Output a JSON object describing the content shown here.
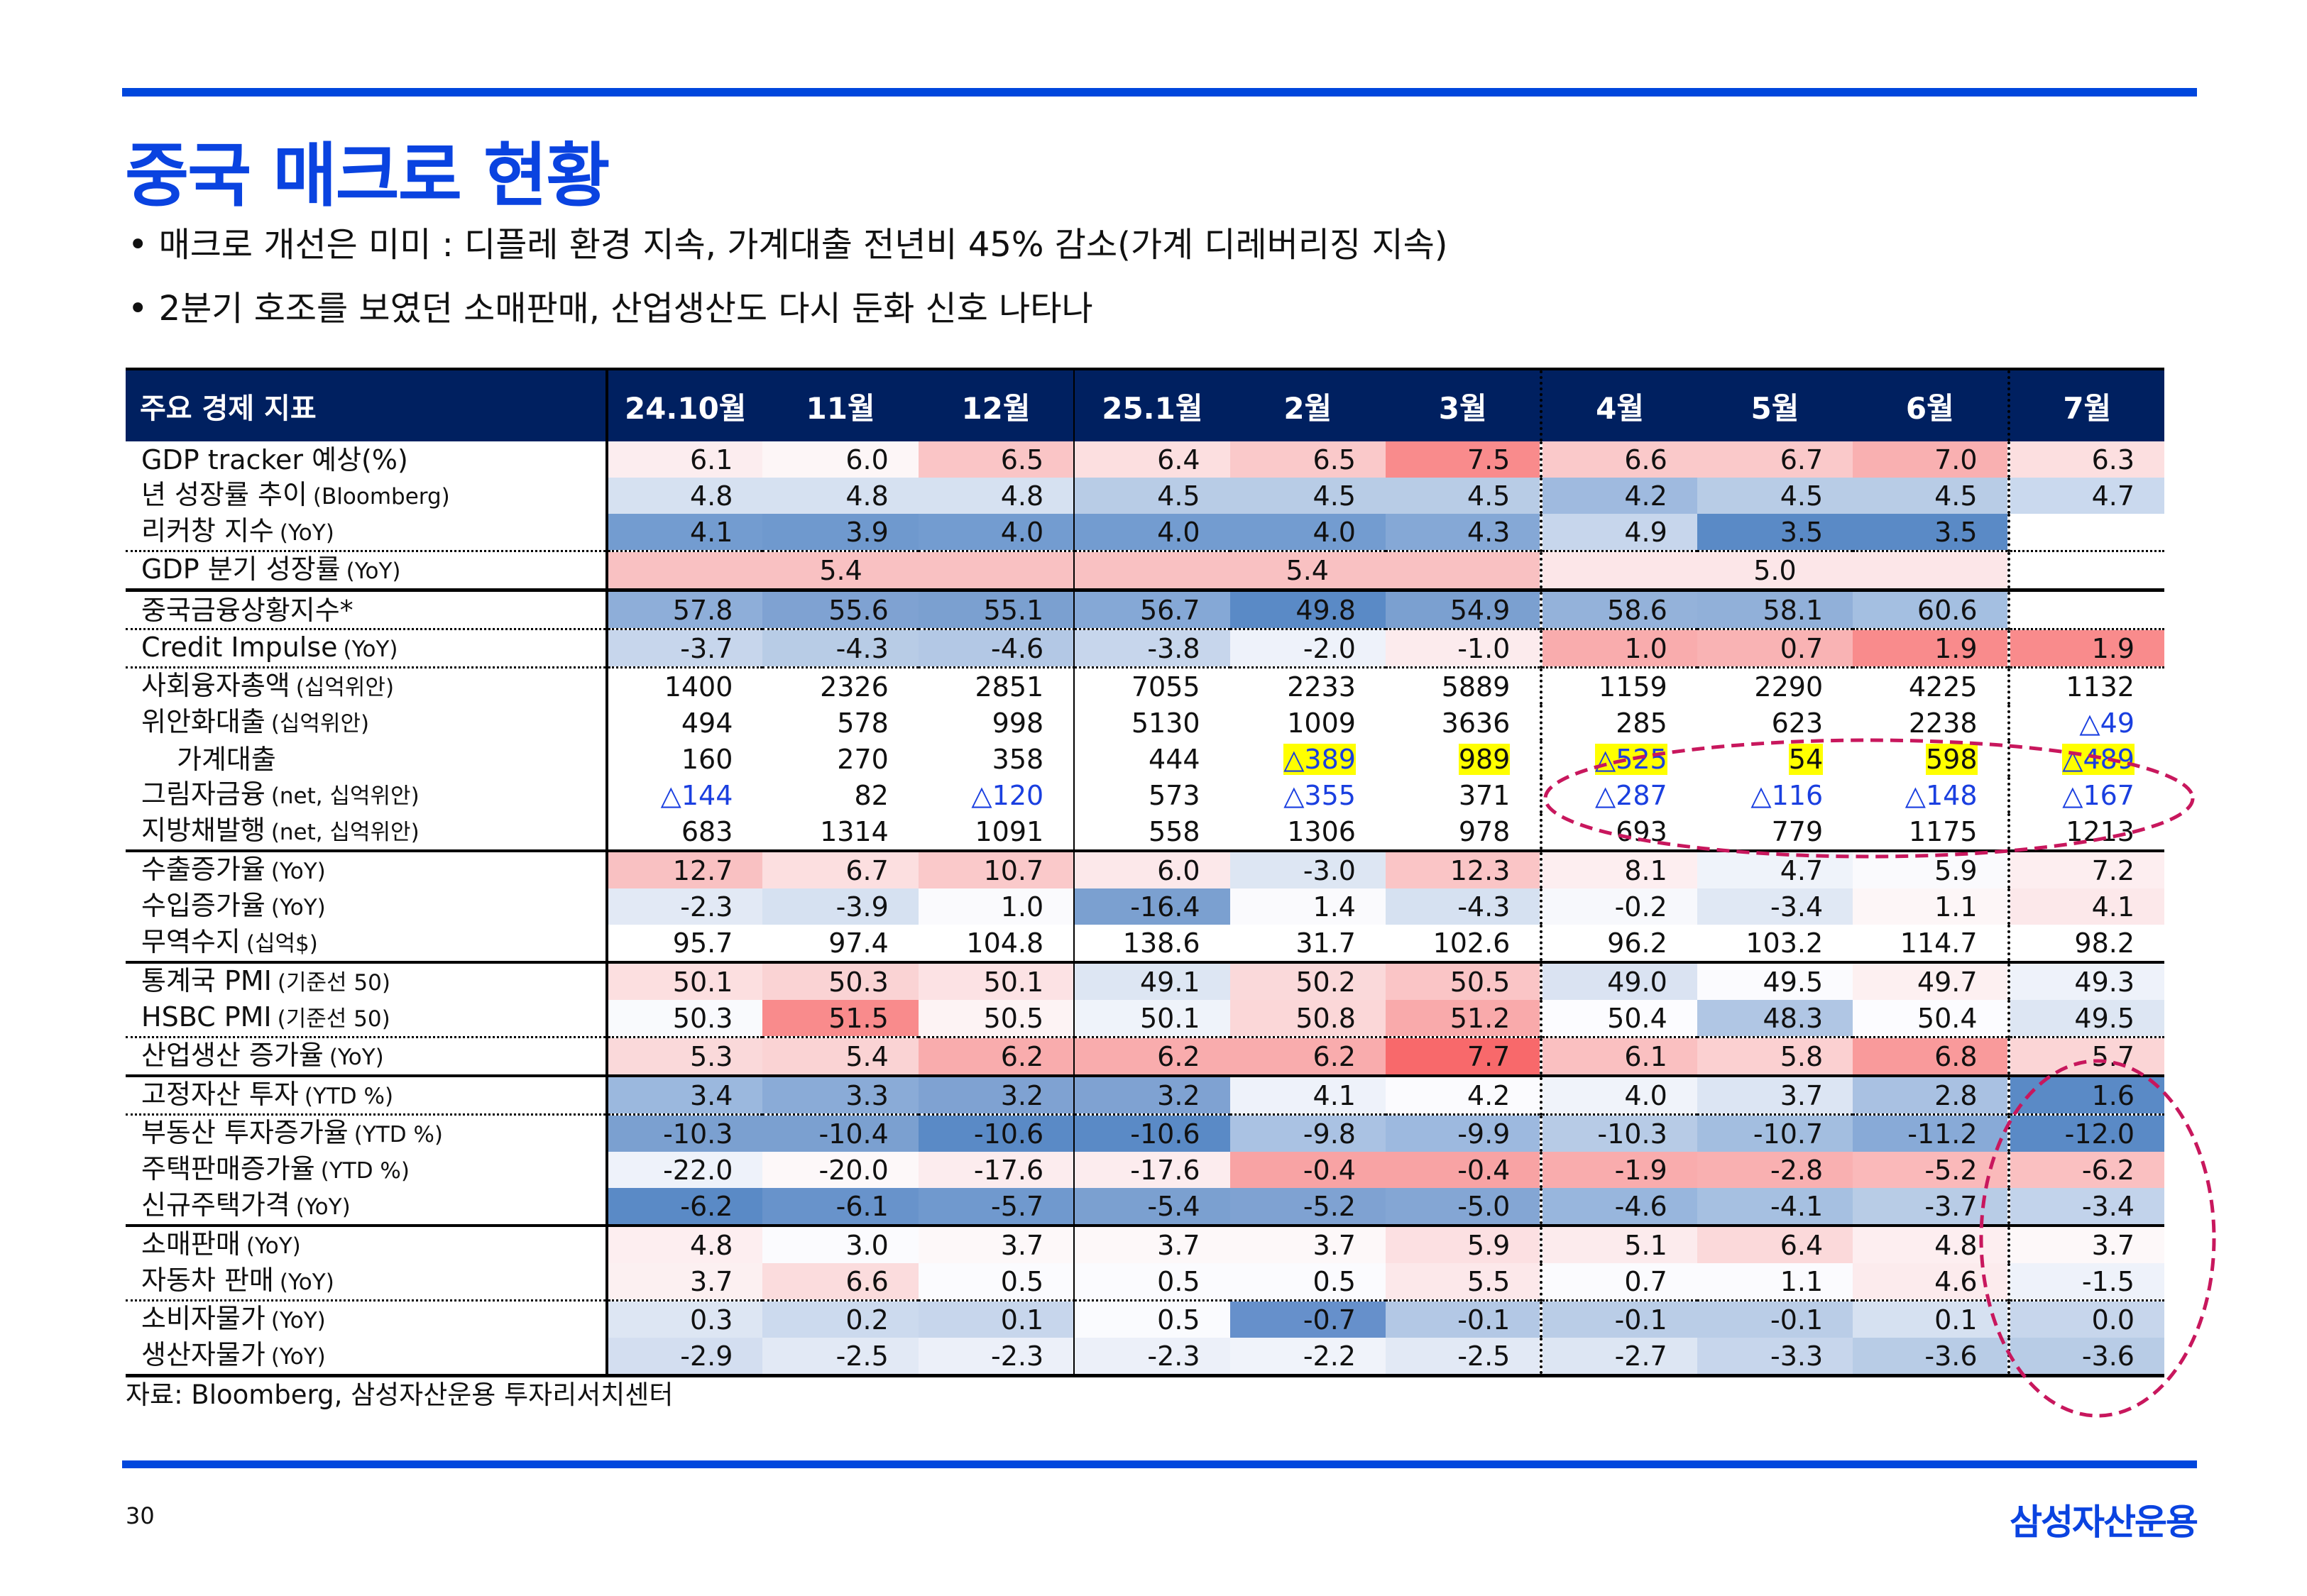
{
  "title": "중국 매크로 현황",
  "bullets": [
    "매크로 개선은 미미 : 디플레 환경 지속, 가계대출 전년비 45% 감소(가계 디레버리징 지속)",
    "2분기 호조를 보였던 소매판매, 산업생산도 다시 둔화 신호 나타나"
  ],
  "table": {
    "header_label": "주요 경제 지표",
    "columns": [
      "24.10월",
      "11월",
      "12월",
      "25.1월",
      "2월",
      "3월",
      "4월",
      "5월",
      "6월",
      "7월"
    ],
    "rows": [
      {
        "label": "GDP tracker 예상(%)",
        "unit": "",
        "values": [
          "6.1",
          "6.0",
          "6.5",
          "6.4",
          "6.5",
          "7.5",
          "6.6",
          "6.7",
          "7.0",
          "6.3"
        ],
        "bg": [
          "#fcedef",
          "#fdf6f7",
          "#fac5c6",
          "#fcdfe0",
          "#fac9ca",
          "#f98b8c",
          "#fac9ca",
          "#fac9ca",
          "#f9b0b1",
          "#fcdfe0"
        ]
      },
      {
        "label": "년 성장률 추이",
        "unit": "(Bloomberg)",
        "values": [
          "4.8",
          "4.8",
          "4.8",
          "4.5",
          "4.5",
          "4.5",
          "4.2",
          "4.5",
          "4.5",
          "4.7"
        ],
        "bg": [
          "#d6e1f1",
          "#d6e1f1",
          "#d6e1f1",
          "#b8cce6",
          "#b8cce6",
          "#b8cce6",
          "#9fbadf",
          "#b8cce6",
          "#b8cce6",
          "#cad9ee"
        ]
      },
      {
        "label": "리커창 지수",
        "unit": "(YoY)",
        "values": [
          "4.1",
          "3.9",
          "4.0",
          "4.0",
          "4.0",
          "4.3",
          "4.9",
          "3.5",
          "3.5",
          ""
        ],
        "bg": [
          "#739cd0",
          "#6f99ce",
          "#739cd0",
          "#739cd0",
          "#739cd0",
          "#85a8d6",
          "#c7d6ec",
          "#5a8ac6",
          "#5a8ac6",
          "#ffffff"
        ]
      },
      {
        "label": "GDP 분기 성장률",
        "unit": "(YoY)",
        "values": [
          "5.4",
          "5.4",
          "5.0",
          ""
        ],
        "bg": [
          "#f9c1c2",
          "#f9c1c2",
          "#fce6e8",
          "#ffffff"
        ]
      },
      {
        "label": "중국금융상황지수*",
        "unit": "",
        "values": [
          "57.8",
          "55.6",
          "55.1",
          "56.7",
          "49.8",
          "54.9",
          "58.6",
          "58.1",
          "60.6",
          ""
        ],
        "bg": [
          "#8eaed9",
          "#7fa2d2",
          "#7ba0d0",
          "#85a8d6",
          "#5a8ac6",
          "#7ba0d0",
          "#94b2da",
          "#91b0d9",
          "#a4bfe1",
          "#ffffff"
        ]
      },
      {
        "label": "Credit Impulse",
        "unit": "(YoY)",
        "values": [
          "-3.7",
          "-4.3",
          "-4.6",
          "-3.8",
          "-2.0",
          "-1.0",
          "1.0",
          "0.7",
          "1.9",
          "1.9"
        ],
        "bg": [
          "#c7d6ec",
          "#b8cce6",
          "#b3c8e5",
          "#c7d6ec",
          "#eef2fa",
          "#fcebed",
          "#f9acad",
          "#f9b3b4",
          "#f98b8c",
          "#f98b8c"
        ]
      },
      {
        "label": "사회융자총액",
        "unit": "(십억위안)",
        "values": [
          "1400",
          "2326",
          "2851",
          "7055",
          "2233",
          "5889",
          "1159",
          "2290",
          "4225",
          "1132"
        ],
        "bg": []
      },
      {
        "label": "위안화대출",
        "unit": "(십억위안)",
        "values": [
          "494",
          "578",
          "998",
          "5130",
          "1009",
          "3636",
          "285",
          "623",
          "2238",
          "△49"
        ],
        "bg": []
      },
      {
        "label": "가계대출",
        "unit": "",
        "indent": true,
        "values": [
          "160",
          "270",
          "358",
          "444",
          "△389",
          "989",
          "△525",
          "54",
          "598",
          "△489"
        ],
        "highlight": [
          4,
          5,
          6,
          7,
          8,
          9
        ],
        "bg": []
      },
      {
        "label": "그림자금융",
        "unit": "(net, 십억위안)",
        "values": [
          "△144",
          "82",
          "△120",
          "573",
          "△355",
          "371",
          "△287",
          "△116",
          "△148",
          "△167"
        ],
        "bg": []
      },
      {
        "label": "지방채발행",
        "unit": "(net, 십억위안)",
        "values": [
          "683",
          "1314",
          "1091",
          "558",
          "1306",
          "978",
          "693",
          "779",
          "1175",
          "1213"
        ],
        "bg": []
      },
      {
        "label": "수출증가율",
        "unit": "(YoY)",
        "values": [
          "12.7",
          "6.7",
          "10.7",
          "6.0",
          "-3.0",
          "12.3",
          "8.1",
          "4.7",
          "5.9",
          "7.2"
        ],
        "bg": [
          "#f9c1c2",
          "#fcdfe0",
          "#fac9ca",
          "#fce8ea",
          "#dde6f3",
          "#fac5c6",
          "#fdeef0",
          "#eff3fa",
          "#fafafd",
          "#fdeef0"
        ]
      },
      {
        "label": "수입증가율",
        "unit": "(YoY)",
        "values": [
          "-2.3",
          "-3.9",
          "1.0",
          "-16.4",
          "1.4",
          "-4.3",
          "-0.2",
          "-3.4",
          "1.1",
          "4.1"
        ],
        "bg": [
          "#e2e9f5",
          "#d6e1f1",
          "#fafafd",
          "#7ba0d0",
          "#fafafd",
          "#d6e1f1",
          "#f7f8fc",
          "#e0e8f4",
          "#fdf6f7",
          "#fce8ea"
        ]
      },
      {
        "label": "무역수지",
        "unit": "(십억$)",
        "values": [
          "95.7",
          "97.4",
          "104.8",
          "138.6",
          "31.7",
          "102.6",
          "96.2",
          "103.2",
          "114.7",
          "98.2"
        ],
        "bg": []
      },
      {
        "label": "통계국 PMI",
        "unit": "(기준선 50)",
        "values": [
          "50.1",
          "50.3",
          "50.1",
          "49.1",
          "50.2",
          "50.5",
          "49.0",
          "49.5",
          "49.7",
          "49.3"
        ],
        "bg": [
          "#fcdfe0",
          "#fad3d4",
          "#fce2e4",
          "#dde6f3",
          "#fad9da",
          "#fac5c6",
          "#dae3f2",
          "#fbfbfe",
          "#fdf0f1",
          "#eef2fa"
        ]
      },
      {
        "label": "HSBC PMI",
        "unit": "(기준선 50)",
        "values": [
          "50.3",
          "51.5",
          "50.5",
          "50.1",
          "50.8",
          "51.2",
          "50.4",
          "48.3",
          "50.4",
          "49.5"
        ],
        "bg": [
          "#f9fafd",
          "#f98b8c",
          "#fdf3f4",
          "#eff3fa",
          "#fbd7d8",
          "#f9aaab",
          "#fcfcff",
          "#b0c6e4",
          "#fcfcff",
          "#dde6f3"
        ]
      },
      {
        "label": "산업생산 증가율",
        "unit": "(YoY)",
        "values": [
          "5.3",
          "5.4",
          "6.2",
          "6.2",
          "6.2",
          "7.7",
          "6.1",
          "5.8",
          "6.8",
          "5.7"
        ],
        "bg": [
          "#fad9da",
          "#fad3d4",
          "#f9acad",
          "#f9acad",
          "#f9acad",
          "#f8696b",
          "#fac0c1",
          "#fbd0d1",
          "#f99a9b",
          "#fbd5d6"
        ]
      },
      {
        "label": "고정자산 투자",
        "unit": "(YTD %)",
        "values": [
          "3.4",
          "3.3",
          "3.2",
          "3.2",
          "4.1",
          "4.2",
          "4.0",
          "3.7",
          "2.8",
          "1.6"
        ],
        "bg": [
          "#9bb8de",
          "#8aabd7",
          "#7fa2d2",
          "#7fa2d2",
          "#eef2fa",
          "#fbfbfe",
          "#f0f3fa",
          "#dce5f3",
          "#a9c1e2",
          "#5a8ac6"
        ]
      },
      {
        "label": "부동산 투자증가율",
        "unit": "(YTD %)",
        "values": [
          "-10.3",
          "-10.4",
          "-10.6",
          "-10.6",
          "-9.8",
          "-9.9",
          "-10.3",
          "-10.7",
          "-11.2",
          "-12.0"
        ],
        "bg": [
          "#7ba0d0",
          "#7ba0d0",
          "#5a8ac6",
          "#5a8ac6",
          "#aac2e3",
          "#9db9df",
          "#b7cbe6",
          "#a3bee0",
          "#88aad7",
          "#5a8ac6"
        ]
      },
      {
        "label": "주택판매증가율",
        "unit": "(YTD %)",
        "values": [
          "-22.0",
          "-20.0",
          "-17.6",
          "-17.6",
          "-0.4",
          "-0.4",
          "-1.9",
          "-2.8",
          "-5.2",
          "-6.2"
        ],
        "bg": [
          "#eef2fa",
          "#fdf8f9",
          "#fcecee",
          "#fcecee",
          "#f8a3a4",
          "#f8a3a4",
          "#f9acad",
          "#f9b0b1",
          "#fab9ba",
          "#fac0c1"
        ]
      },
      {
        "label": "신규주택가격",
        "unit": "(YoY)",
        "values": [
          "-6.2",
          "-6.1",
          "-5.7",
          "-5.4",
          "-5.2",
          "-5.0",
          "-4.6",
          "-4.1",
          "-3.7",
          "-3.4"
        ],
        "bg": [
          "#5a8ac6",
          "#6893cb",
          "#7099ce",
          "#7ba0d0",
          "#7fa2d2",
          "#84a6d4",
          "#98b6dd",
          "#a6c0e1",
          "#b8cce6",
          "#c2d3eb"
        ]
      },
      {
        "label": "소매판매",
        "unit": "(YoY)",
        "values": [
          "4.8",
          "3.0",
          "3.7",
          "3.7",
          "3.7",
          "5.9",
          "5.1",
          "6.4",
          "4.8",
          "3.7"
        ],
        "bg": [
          "#fdeef0",
          "#fbfbfe",
          "#fdf8f9",
          "#fdf8f9",
          "#fdf8f9",
          "#fce0e2",
          "#fcebed",
          "#fbd9da",
          "#fdeef0",
          "#fdf8f9"
        ]
      },
      {
        "label": "자동차 판매",
        "unit": "(YoY)",
        "values": [
          "3.7",
          "6.6",
          "0.5",
          "0.5",
          "0.5",
          "5.5",
          "0.7",
          "1.1",
          "4.6",
          "-1.5"
        ],
        "bg": [
          "#fcf0f1",
          "#fbdcdd",
          "#fbfbfe",
          "#fbfbfe",
          "#fbfbfe",
          "#fce8ea",
          "#fbfbfe",
          "#fbfbfe",
          "#fcebed",
          "#eef2fa"
        ]
      },
      {
        "label": "소비자물가",
        "unit": "(YoY)",
        "values": [
          "0.3",
          "0.2",
          "0.1",
          "0.5",
          "-0.7",
          "-0.1",
          "-0.1",
          "-0.1",
          "0.1",
          "0.0"
        ],
        "bg": [
          "#dde6f3",
          "#ccdaee",
          "#c7d6ec",
          "#fafbfe",
          "#6690cb",
          "#b3c8e5",
          "#bacde7",
          "#bacde7",
          "#d6e1f1",
          "#c7d6ec"
        ]
      },
      {
        "label": "생산자물가",
        "unit": "(YoY)",
        "values": [
          "-2.9",
          "-2.5",
          "-2.3",
          "-2.3",
          "-2.2",
          "-2.5",
          "-2.7",
          "-3.3",
          "-3.6",
          "-3.6"
        ],
        "bg": [
          "#d3def0",
          "#e2e9f5",
          "#ecf0f9",
          "#ecf0f9",
          "#f0f3fa",
          "#e2e9f5",
          "#dde6f3",
          "#c7d6ec",
          "#b8cce6",
          "#b8cce6"
        ]
      }
    ]
  },
  "source": "자료: Bloomberg, 삼성자산운용 투자리서치센터",
  "page_number": "30",
  "logo": "삼성자산운용",
  "colors": {
    "accent_blue": "#0047dd",
    "header_navy": "#002060",
    "negative_text_blue": "#1a3fe0",
    "highlight_yellow": "#ffff00",
    "annotation_ellipse": "#c8175d"
  }
}
